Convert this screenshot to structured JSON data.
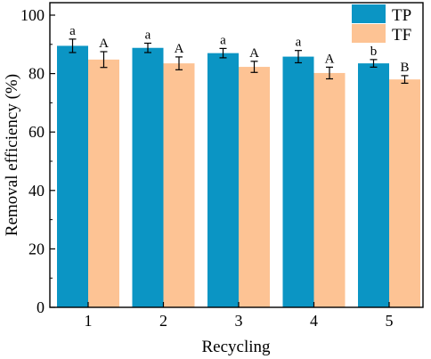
{
  "chart_data": {
    "type": "bar",
    "title": "",
    "xlabel": "Recycling",
    "ylabel": "Removal efficiency (%)",
    "ylim": [
      0,
      100
    ],
    "yticks": [
      "0",
      "20",
      "40",
      "60",
      "80",
      "100"
    ],
    "categories": [
      "1",
      "2",
      "3",
      "4",
      "5"
    ],
    "series": [
      {
        "name": "TP",
        "color": "#0b95c4",
        "values": [
          89.5,
          88.8,
          87.0,
          85.8,
          83.5
        ],
        "errors": [
          2.3,
          1.6,
          1.6,
          2.1,
          1.3
        ],
        "significance": [
          "a",
          "a",
          "a",
          "a",
          "b"
        ]
      },
      {
        "name": "TF",
        "color": "#fdc394",
        "values": [
          84.8,
          83.5,
          82.3,
          80.2,
          78.0
        ],
        "errors": [
          2.7,
          2.2,
          1.9,
          2.0,
          1.3
        ],
        "significance": [
          "A",
          "A",
          "A",
          "A",
          "B"
        ]
      }
    ],
    "legend": "top-right",
    "grid": false
  }
}
